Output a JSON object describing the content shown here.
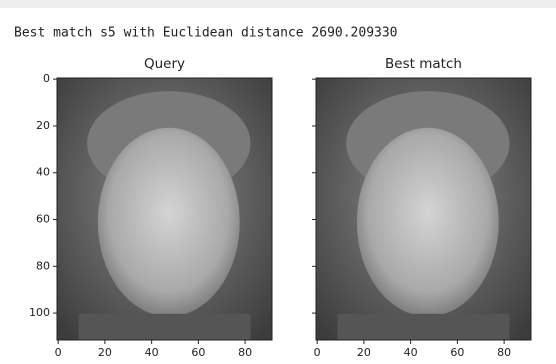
{
  "header": {
    "text": "Best match s5 with Euclidean distance 2690.209330"
  },
  "chart_data": [
    {
      "type": "image",
      "title": "Query",
      "xlim": [
        -0.5,
        91.5
      ],
      "ylim": [
        111.5,
        -0.5
      ],
      "xticks": [
        0,
        20,
        40,
        60,
        80
      ],
      "yticks": [
        0,
        20,
        40,
        60,
        80,
        100
      ],
      "ytick_labels": true
    },
    {
      "type": "image",
      "title": "Best match",
      "xlim": [
        -0.5,
        91.5
      ],
      "ylim": [
        111.5,
        -0.5
      ],
      "xticks": [
        0,
        20,
        40,
        60,
        80
      ],
      "yticks": [
        0,
        20,
        40,
        60,
        80,
        100
      ],
      "ytick_labels": false
    }
  ]
}
